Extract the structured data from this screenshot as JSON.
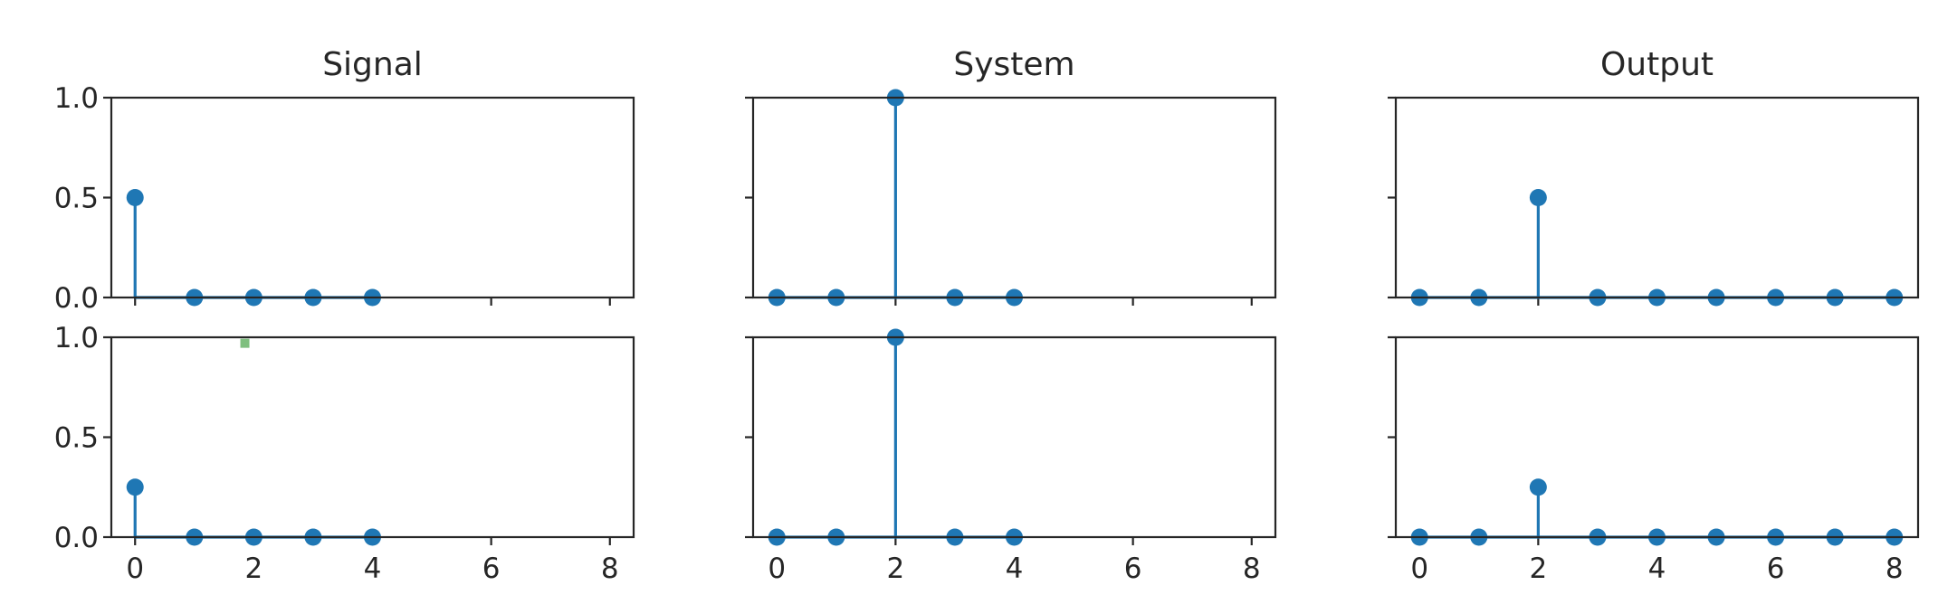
{
  "colors": {
    "stem": "#1f77b4",
    "axes": "#262626",
    "marker_extra": "#7fbf7f"
  },
  "chart_data": [
    {
      "type": "stem",
      "row": 0,
      "col": 0,
      "title": "Signal",
      "x": [
        0,
        1,
        2,
        3,
        4
      ],
      "y": [
        0.5,
        0,
        0,
        0,
        0
      ],
      "xlim": [
        -0.4,
        8.4
      ],
      "ylim": [
        0,
        1
      ],
      "xticks": [
        0,
        2,
        4,
        6,
        8
      ],
      "yticks": [
        0,
        0.5,
        1
      ],
      "xticklabels": [],
      "yticklabels": [
        "0.0",
        "0.5",
        "1.0"
      ]
    },
    {
      "type": "stem",
      "row": 0,
      "col": 1,
      "title": "System",
      "x": [
        0,
        1,
        2,
        3,
        4
      ],
      "y": [
        0,
        0,
        1,
        0,
        0
      ],
      "xlim": [
        -0.4,
        8.4
      ],
      "ylim": [
        0,
        1
      ],
      "xticks": [
        0,
        2,
        4,
        6,
        8
      ],
      "yticks": [
        0,
        0.5,
        1
      ],
      "xticklabels": [],
      "yticklabels": []
    },
    {
      "type": "stem",
      "row": 0,
      "col": 2,
      "title": "Output",
      "x": [
        0,
        1,
        2,
        3,
        4,
        5,
        6,
        7,
        8
      ],
      "y": [
        0,
        0,
        0.5,
        0,
        0,
        0,
        0,
        0,
        0
      ],
      "xlim": [
        -0.4,
        8.4
      ],
      "ylim": [
        0,
        1
      ],
      "xticks": [
        0,
        2,
        4,
        6,
        8
      ],
      "yticks": [
        0,
        0.5,
        1
      ],
      "xticklabels": [],
      "yticklabels": []
    },
    {
      "type": "stem",
      "row": 1,
      "col": 0,
      "title": "",
      "x": [
        0,
        1,
        2,
        3,
        4
      ],
      "y": [
        0.25,
        0,
        0,
        0,
        0
      ],
      "xlim": [
        -0.4,
        8.4
      ],
      "ylim": [
        0,
        1
      ],
      "xticks": [
        0,
        2,
        4,
        6,
        8
      ],
      "yticks": [
        0,
        0.5,
        1
      ],
      "xticklabels": [
        "0",
        "2",
        "4",
        "6",
        "8"
      ],
      "yticklabels": [
        "0.0",
        "0.5",
        "1.0"
      ],
      "extra_marker": {
        "x": 1.85,
        "y": 0.97
      }
    },
    {
      "type": "stem",
      "row": 1,
      "col": 1,
      "title": "",
      "x": [
        0,
        1,
        2,
        3,
        4
      ],
      "y": [
        0,
        0,
        1,
        0,
        0
      ],
      "xlim": [
        -0.4,
        8.4
      ],
      "ylim": [
        0,
        1
      ],
      "xticks": [
        0,
        2,
        4,
        6,
        8
      ],
      "yticks": [
        0,
        0.5,
        1
      ],
      "xticklabels": [
        "0",
        "2",
        "4",
        "6",
        "8"
      ],
      "yticklabels": []
    },
    {
      "type": "stem",
      "row": 1,
      "col": 2,
      "title": "",
      "x": [
        0,
        1,
        2,
        3,
        4,
        5,
        6,
        7,
        8
      ],
      "y": [
        0,
        0,
        0.25,
        0,
        0,
        0,
        0,
        0,
        0
      ],
      "xlim": [
        -0.4,
        8.4
      ],
      "ylim": [
        0,
        1
      ],
      "xticks": [
        0,
        2,
        4,
        6,
        8
      ],
      "yticks": [
        0,
        0.5,
        1
      ],
      "xticklabels": [
        "0",
        "2",
        "4",
        "6",
        "8"
      ],
      "yticklabels": []
    }
  ]
}
